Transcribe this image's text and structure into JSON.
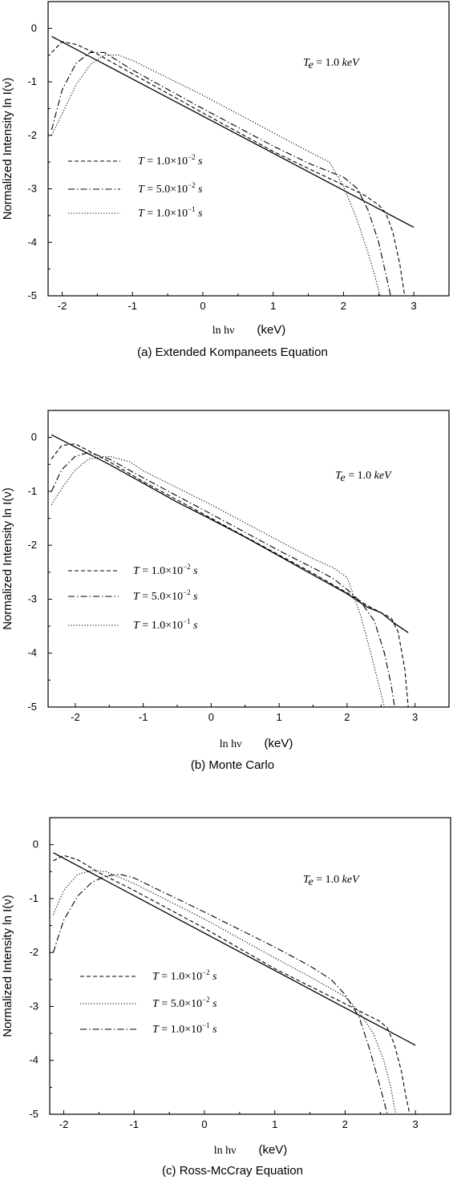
{
  "chart_data": [
    {
      "type": "line",
      "caption": "(a)  Extended Kompaneets Equation",
      "xlabel": "ln hν",
      "xlabel_unit": "(keV)",
      "ylabel": "Normalized  Intensity   ln I(ν)",
      "xlim": [
        -2.2,
        3.5
      ],
      "ylim": [
        -5,
        0.5
      ],
      "xticks": [
        "-2",
        "-1",
        "0",
        "1",
        "2",
        "3"
      ],
      "yticks": [
        "0",
        "-1",
        "-2",
        "-3",
        "-4",
        "-5"
      ],
      "annotation": "Te = 1.0 keV",
      "legend": [
        {
          "name": "T = 1.0×10⁻² s",
          "style": "dashed"
        },
        {
          "name": "T = 5.0×10⁻² s",
          "style": "dashdot"
        },
        {
          "name": "T = 1.0×10⁻¹ s",
          "style": "dotted"
        }
      ],
      "series": [
        {
          "name": "",
          "style": "solid",
          "x": [
            -2.15,
            3.0
          ],
          "y": [
            -0.15,
            -3.72
          ]
        },
        {
          "name": "T = 1.0×10⁻² s",
          "style": "dashed",
          "x": [
            -2.15,
            -2.0,
            -1.8,
            -1.5,
            -1.0,
            0,
            1.0,
            1.5,
            2.0,
            2.3,
            2.5,
            2.6,
            2.7,
            2.8,
            2.87
          ],
          "y": [
            -0.45,
            -0.25,
            -0.3,
            -0.48,
            -0.85,
            -1.58,
            -2.3,
            -2.62,
            -2.93,
            -3.12,
            -3.3,
            -3.45,
            -3.8,
            -4.4,
            -5.0
          ]
        },
        {
          "name": "T = 5.0×10⁻² s",
          "style": "dashdot",
          "x": [
            -2.15,
            -2.0,
            -1.8,
            -1.6,
            -1.4,
            -1.0,
            0,
            1.0,
            1.5,
            1.8,
            2.0,
            2.2,
            2.35,
            2.5,
            2.62,
            2.67
          ],
          "y": [
            -1.9,
            -1.15,
            -0.65,
            -0.45,
            -0.45,
            -0.78,
            -1.5,
            -2.2,
            -2.52,
            -2.68,
            -2.78,
            -3.0,
            -3.4,
            -4.0,
            -4.7,
            -5.0
          ]
        },
        {
          "name": "T = 1.0×10⁻¹ s",
          "style": "dotted",
          "x": [
            -2.15,
            -2.0,
            -1.8,
            -1.6,
            -1.4,
            -1.2,
            -1.0,
            0,
            1.0,
            1.5,
            1.8,
            2.0,
            2.2,
            2.35,
            2.45,
            2.52
          ],
          "y": [
            -2.0,
            -1.6,
            -1.05,
            -0.68,
            -0.5,
            -0.5,
            -0.6,
            -1.25,
            -1.95,
            -2.3,
            -2.5,
            -2.95,
            -3.6,
            -4.2,
            -4.65,
            -5.0
          ]
        }
      ]
    },
    {
      "type": "line",
      "caption": "(b)  Monte Carlo",
      "xlabel": "ln hν",
      "xlabel_unit": "(keV)",
      "ylabel": "Normalized  Intensity   ln I(ν)",
      "xlim": [
        -2.4,
        3.5
      ],
      "ylim": [
        -5,
        0.5
      ],
      "xticks": [
        "-2",
        "-1",
        "0",
        "1",
        "2",
        "3"
      ],
      "yticks": [
        "0",
        "-1",
        "-2",
        "-3",
        "-4",
        "-5"
      ],
      "annotation": "Te = 1.0 keV",
      "legend": [
        {
          "name": "T = 1.0×10⁻² s",
          "style": "dashed"
        },
        {
          "name": "T = 5.0×10⁻² s",
          "style": "dashdot"
        },
        {
          "name": "T = 1.0×10⁻¹ s",
          "style": "dotted"
        }
      ],
      "series": [
        {
          "name": "",
          "style": "solid",
          "x": [
            -2.35,
            -2.0,
            -1.5,
            -1.0,
            -0.5,
            0,
            0.5,
            1.0,
            1.5,
            2.0,
            2.3,
            2.5,
            2.7,
            2.9
          ],
          "y": [
            0.05,
            -0.18,
            -0.5,
            -0.85,
            -1.2,
            -1.52,
            -1.85,
            -2.2,
            -2.55,
            -2.9,
            -3.15,
            -3.25,
            -3.45,
            -3.62
          ]
        },
        {
          "name": "T = 1.0×10⁻² s",
          "style": "dashed",
          "x": [
            -2.35,
            -2.2,
            -2.0,
            -1.5,
            -1.0,
            0,
            1.0,
            1.5,
            2.0,
            2.3,
            2.5,
            2.65,
            2.75,
            2.85,
            2.9
          ],
          "y": [
            -0.4,
            -0.15,
            -0.12,
            -0.45,
            -0.82,
            -1.5,
            -2.18,
            -2.52,
            -2.88,
            -3.12,
            -3.25,
            -3.35,
            -3.6,
            -4.3,
            -5.0
          ]
        },
        {
          "name": "T = 5.0×10⁻² s",
          "style": "dashdot",
          "x": [
            -2.35,
            -2.2,
            -2.0,
            -1.8,
            -1.5,
            -1.0,
            0,
            1.0,
            1.5,
            1.8,
            2.0,
            2.2,
            2.4,
            2.55,
            2.65,
            2.7
          ],
          "y": [
            -1.0,
            -0.6,
            -0.35,
            -0.28,
            -0.4,
            -0.75,
            -1.42,
            -2.1,
            -2.42,
            -2.62,
            -2.82,
            -3.05,
            -3.4,
            -4.0,
            -4.6,
            -5.0
          ]
        },
        {
          "name": "T = 1.0×10⁻¹ s",
          "style": "dotted",
          "x": [
            -2.35,
            -2.2,
            -2.0,
            -1.8,
            -1.5,
            -1.2,
            -1.0,
            0,
            1.0,
            1.5,
            1.8,
            2.0,
            2.2,
            2.35,
            2.45,
            2.55
          ],
          "y": [
            -1.25,
            -0.95,
            -0.6,
            -0.4,
            -0.35,
            -0.45,
            -0.62,
            -1.25,
            -1.92,
            -2.25,
            -2.42,
            -2.6,
            -3.3,
            -4.0,
            -4.5,
            -5.0
          ]
        }
      ]
    },
    {
      "type": "line",
      "caption": "(c)  Ross-McCray Equation",
      "xlabel": "ln hν",
      "xlabel_unit": "(keV)",
      "ylabel": "Normalized  Intensity   ln I(ν)",
      "xlim": [
        -2.2,
        3.5
      ],
      "ylim": [
        -5,
        0.5
      ],
      "xticks": [
        "-2",
        "-1",
        "0",
        "1",
        "2",
        "3"
      ],
      "yticks": [
        "0",
        "-1",
        "-2",
        "-3",
        "-4",
        "-5"
      ],
      "annotation": "Te = 1.0 keV",
      "legend": [
        {
          "name": "T = 1.0×10⁻² s",
          "style": "dashed"
        },
        {
          "name": "T = 5.0×10⁻² s",
          "style": "dotted"
        },
        {
          "name": "T = 1.0×10⁻¹ s",
          "style": "dashdot"
        }
      ],
      "series": [
        {
          "name": "",
          "style": "solid",
          "x": [
            -2.15,
            3.0
          ],
          "y": [
            -0.15,
            -3.72
          ]
        },
        {
          "name": "T = 1.0×10⁻² s",
          "style": "dashed",
          "x": [
            -2.15,
            -2.0,
            -1.8,
            -1.5,
            -1.0,
            0,
            1.0,
            2.0,
            2.3,
            2.5,
            2.6,
            2.7,
            2.8,
            2.87,
            2.92
          ],
          "y": [
            -0.3,
            -0.2,
            -0.28,
            -0.52,
            -0.85,
            -1.55,
            -2.3,
            -2.95,
            -3.15,
            -3.28,
            -3.4,
            -3.7,
            -4.2,
            -4.7,
            -5.0
          ]
        },
        {
          "name": "T = 5.0×10⁻² s",
          "style": "dotted",
          "x": [
            -2.15,
            -2.0,
            -1.8,
            -1.6,
            -1.4,
            -1.0,
            0,
            1.0,
            1.5,
            2.0,
            2.2,
            2.4,
            2.55,
            2.65,
            2.72
          ],
          "y": [
            -1.3,
            -0.85,
            -0.55,
            -0.48,
            -0.5,
            -0.72,
            -1.38,
            -2.1,
            -2.45,
            -2.82,
            -3.1,
            -3.5,
            -4.0,
            -4.5,
            -5.0
          ]
        },
        {
          "name": "T = 1.0×10⁻¹ s",
          "style": "dashdot",
          "x": [
            -2.15,
            -2.0,
            -1.8,
            -1.6,
            -1.4,
            -1.2,
            -1.0,
            0,
            1.0,
            1.5,
            1.8,
            2.0,
            2.2,
            2.35,
            2.5,
            2.6
          ],
          "y": [
            -2.0,
            -1.4,
            -0.95,
            -0.7,
            -0.58,
            -0.55,
            -0.62,
            -1.25,
            -1.9,
            -2.25,
            -2.5,
            -2.78,
            -3.2,
            -3.8,
            -4.5,
            -5.0
          ]
        }
      ]
    }
  ]
}
